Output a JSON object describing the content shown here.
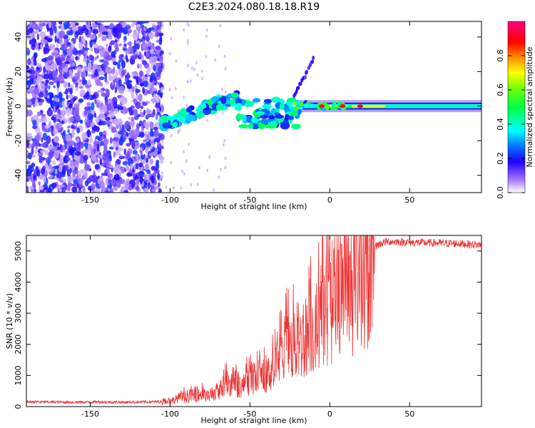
{
  "title": "C2E3.2024.080.18.18.R19",
  "chart_data": [
    {
      "type": "heatmap",
      "xlabel": "Height of straight line (km)",
      "ylabel": "Frequency (Hz)",
      "xlim": [
        -190,
        95
      ],
      "ylim": [
        -50,
        49
      ],
      "xticks": [
        -150,
        -100,
        -50,
        0,
        50
      ],
      "yticks": [
        -40,
        -20,
        0,
        20,
        40
      ],
      "colorbar": {
        "label": "Normalized spectral amplitude",
        "range": [
          0.0,
          1.0
        ],
        "ticks": [
          0.0,
          0.2,
          0.4,
          0.6,
          0.8
        ],
        "colors": [
          "#ffffff",
          "#8a2be2",
          "#0000ff",
          "#00ffff",
          "#00ff00",
          "#ffff00",
          "#ff8000",
          "#ff0000",
          "#ff0080"
        ]
      },
      "noise_region": {
        "x": [
          -190,
          -105
        ],
        "y": [
          -50,
          49
        ],
        "amplitude": 0.15
      },
      "features": [
        {
          "name": "ramp",
          "x": [
            -105,
            -58
          ],
          "y": [
            -10,
            5
          ],
          "amplitude": 0.4
        },
        {
          "name": "cluster",
          "x": [
            -58,
            -20
          ],
          "y": [
            -12,
            4
          ],
          "amplitude": 0.45
        },
        {
          "name": "streak",
          "x": [
            -25,
            -10
          ],
          "y": [
            0,
            28
          ],
          "amplitude": 0.1
        },
        {
          "name": "carrier",
          "x": [
            -20,
            95
          ],
          "y": [
            0,
            0
          ],
          "amplitude": 0.5
        },
        {
          "name": "peak",
          "x": [
            -5,
            30
          ],
          "y": [
            0,
            0
          ],
          "amplitude": 0.9
        }
      ]
    },
    {
      "type": "line",
      "xlabel": "Height of straight line (km)",
      "ylabel": "SNR (10 * v/v)",
      "xlim": [
        -190,
        95
      ],
      "ylim": [
        0,
        5500
      ],
      "xticks": [
        -150,
        -100,
        -50,
        0,
        50
      ],
      "yticks": [
        0,
        1000,
        2000,
        3000,
        4000,
        5000
      ],
      "color": "#ee3333",
      "series": [
        {
          "name": "SNR",
          "x": [
            -190,
            -175,
            -160,
            -145,
            -130,
            -115,
            -105,
            -100,
            -95,
            -90,
            -85,
            -80,
            -75,
            -70,
            -65,
            -60,
            -55,
            -50,
            -45,
            -40,
            -35,
            -30,
            -25,
            -20,
            -15,
            -10,
            -5,
            0,
            5,
            10,
            15,
            20,
            25,
            30,
            35,
            40,
            50,
            60,
            70,
            80,
            90,
            95
          ],
          "values": [
            150,
            150,
            140,
            150,
            140,
            150,
            160,
            200,
            320,
            380,
            420,
            450,
            380,
            600,
            800,
            900,
            750,
            1000,
            1000,
            1100,
            1500,
            1900,
            2300,
            2200,
            2700,
            2900,
            3300,
            3800,
            3700,
            4000,
            4300,
            4800,
            5050,
            5200,
            5300,
            5300,
            5280,
            5260,
            5250,
            5240,
            5200,
            5200
          ]
        }
      ]
    }
  ]
}
